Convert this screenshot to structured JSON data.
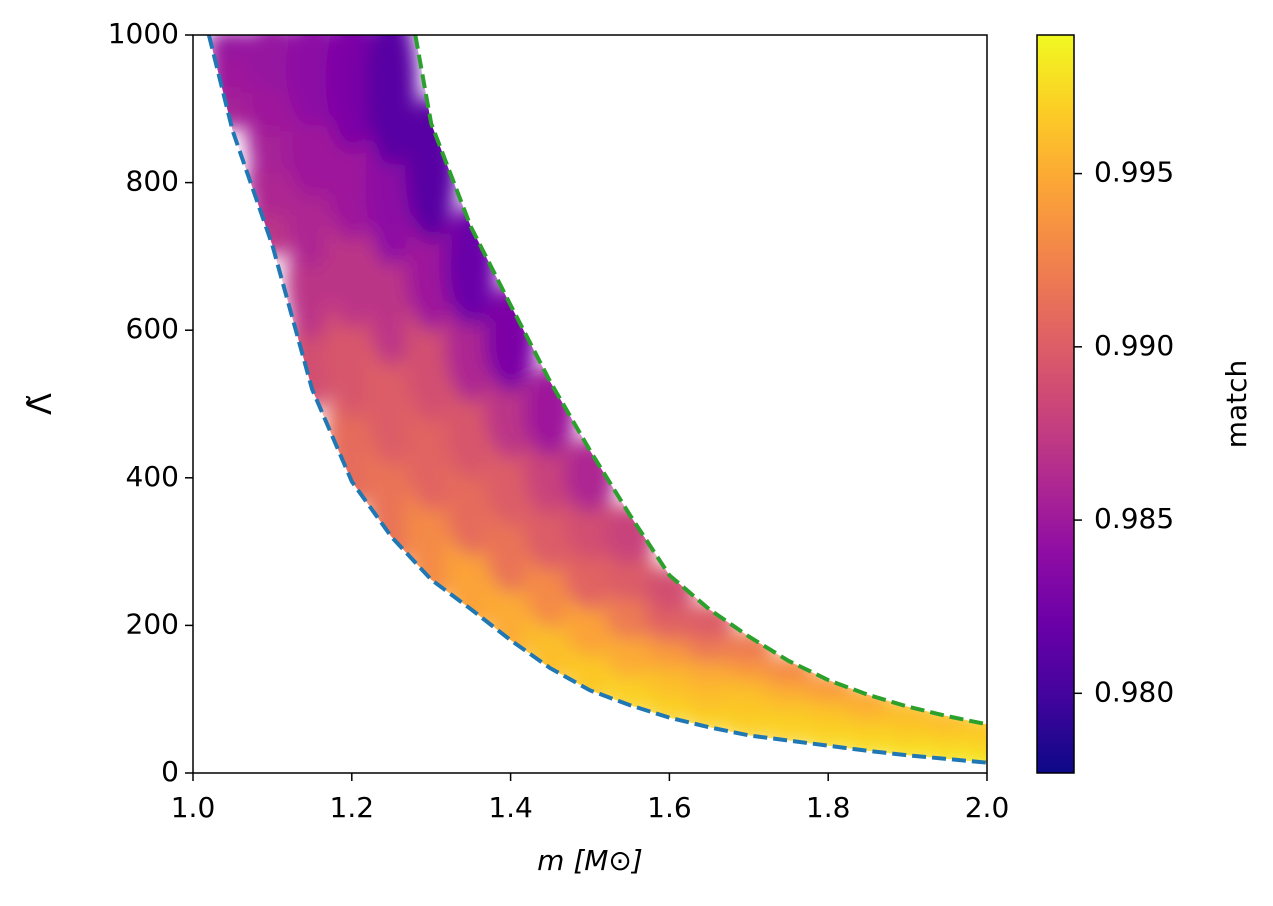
{
  "chart_data": {
    "type": "scatter",
    "xlabel": "m [M⊙]",
    "ylabel": "Λ̃",
    "colorbar_label": "match",
    "xlim": [
      1.0,
      2.0
    ],
    "ylim": [
      0,
      1000
    ],
    "xticks": [
      {
        "value": 1.0,
        "label": "1.0"
      },
      1.2,
      1.4,
      1.6,
      1.8,
      {
        "value": 2.0,
        "label": "2.0"
      }
    ],
    "yticks": [
      0,
      200,
      400,
      600,
      800,
      1000
    ],
    "clim": [
      0.9777,
      0.999
    ],
    "cticks": [
      {
        "value": 0.98,
        "label": "0.980"
      },
      0.985,
      {
        "value": 0.99,
        "label": "0.990"
      },
      0.995
    ],
    "colormap": "plasma",
    "x": [
      1.05,
      1.05,
      1.05,
      1.05,
      1.05,
      1.1,
      1.1,
      1.1,
      1.1,
      1.1,
      1.15,
      1.15,
      1.15,
      1.15,
      1.15,
      1.2,
      1.2,
      1.2,
      1.2,
      1.2,
      1.25,
      1.25,
      1.25,
      1.25,
      1.25,
      1.3,
      1.3,
      1.3,
      1.3,
      1.3,
      1.35,
      1.35,
      1.35,
      1.35,
      1.35,
      1.4,
      1.4,
      1.4,
      1.4,
      1.4,
      1.45,
      1.45,
      1.45,
      1.45,
      1.45,
      1.5,
      1.5,
      1.5,
      1.5,
      1.5,
      1.55,
      1.55,
      1.55,
      1.55,
      1.55,
      1.6,
      1.6,
      1.6,
      1.6,
      1.6,
      1.65,
      1.65,
      1.65,
      1.65,
      1.65,
      1.7,
      1.7,
      1.7,
      1.7,
      1.7,
      1.75,
      1.75,
      1.75,
      1.75,
      1.75,
      1.8,
      1.8,
      1.8,
      1.8,
      1.8,
      1.85,
      1.85,
      1.85,
      1.85,
      1.85,
      1.9,
      1.9,
      1.9,
      1.9,
      1.9,
      1.95,
      1.95,
      1.95,
      1.95,
      1.95,
      2.0,
      2.0,
      2.0,
      2.0,
      2.0
    ],
    "values": [
      892,
      916,
      940,
      964,
      988,
      744,
      800,
      858,
      914,
      972,
      568,
      664,
      760,
      856,
      952,
      456,
      577,
      698,
      818,
      940,
      388,
      524,
      660,
      796,
      932,
      329,
      452,
      574,
      696,
      819,
      274,
      377,
      481,
      585,
      688,
      225,
      316,
      407,
      498,
      589,
      181,
      258,
      336,
      414,
      491,
      144,
      210,
      274,
      340,
      404,
      118,
      169,
      221,
      273,
      324,
      94,
      133,
      172,
      210,
      249,
      78,
      110,
      142,
      174,
      206,
      64,
      91,
      118,
      145,
      172,
      55,
      76,
      98,
      120,
      141,
      46,
      64,
      82,
      99,
      117,
      38,
      53,
      68,
      83,
      98,
      31,
      44,
      57,
      70,
      83,
      25,
      36,
      48,
      59,
      71,
      19,
      30,
      40,
      50,
      61
    ],
    "c_values": [
      0.9855,
      0.9855,
      0.985,
      0.985,
      0.9845,
      0.987,
      0.986,
      0.9855,
      0.985,
      0.9845,
      0.989,
      0.987,
      0.986,
      0.985,
      0.984,
      0.991,
      0.9895,
      0.987,
      0.985,
      0.983,
      0.9915,
      0.99,
      0.987,
      0.984,
      0.981,
      0.993,
      0.9905,
      0.989,
      0.985,
      0.981,
      0.9945,
      0.991,
      0.9895,
      0.986,
      0.982,
      0.995,
      0.9915,
      0.99,
      0.987,
      0.983,
      0.996,
      0.993,
      0.99,
      0.988,
      0.985,
      0.9965,
      0.9945,
      0.9905,
      0.989,
      0.986,
      0.997,
      0.995,
      0.992,
      0.99,
      0.988,
      0.997,
      0.996,
      0.994,
      0.9905,
      0.989,
      0.997,
      0.996,
      0.995,
      0.992,
      0.99,
      0.997,
      0.9965,
      0.996,
      0.994,
      0.992,
      0.997,
      0.997,
      0.996,
      0.995,
      0.993,
      0.9975,
      0.997,
      0.9965,
      0.996,
      0.994,
      0.998,
      0.997,
      0.997,
      0.996,
      0.995,
      0.998,
      0.9975,
      0.997,
      0.9965,
      0.996,
      0.998,
      0.998,
      0.997,
      0.997,
      0.996,
      0.9985,
      0.998,
      0.9975,
      0.997,
      0.9965
    ],
    "lines": [
      {
        "color": "#1f77b4",
        "x": [
          1.02,
          1.05,
          1.1,
          1.15,
          1.2,
          1.25,
          1.3,
          1.35,
          1.4,
          1.45,
          1.5,
          1.55,
          1.6,
          1.65,
          1.7,
          1.75,
          1.8,
          1.85,
          1.9,
          1.95,
          2.0
        ],
        "values": [
          1000,
          870,
          715,
          520,
          395,
          320,
          262,
          222,
          180,
          142,
          112,
          92,
          75,
          62,
          51,
          44,
          37,
          30,
          24,
          19,
          14
        ]
      },
      {
        "color": "#2ca02c",
        "x": [
          1.28,
          1.3,
          1.35,
          1.4,
          1.45,
          1.5,
          1.55,
          1.6,
          1.65,
          1.7,
          1.75,
          1.8,
          1.85,
          1.9,
          1.95,
          2.0
        ],
        "values": [
          1000,
          880,
          740,
          634,
          530,
          437,
          350,
          268,
          222,
          185,
          152,
          126,
          106,
          90,
          77,
          66
        ]
      }
    ]
  }
}
